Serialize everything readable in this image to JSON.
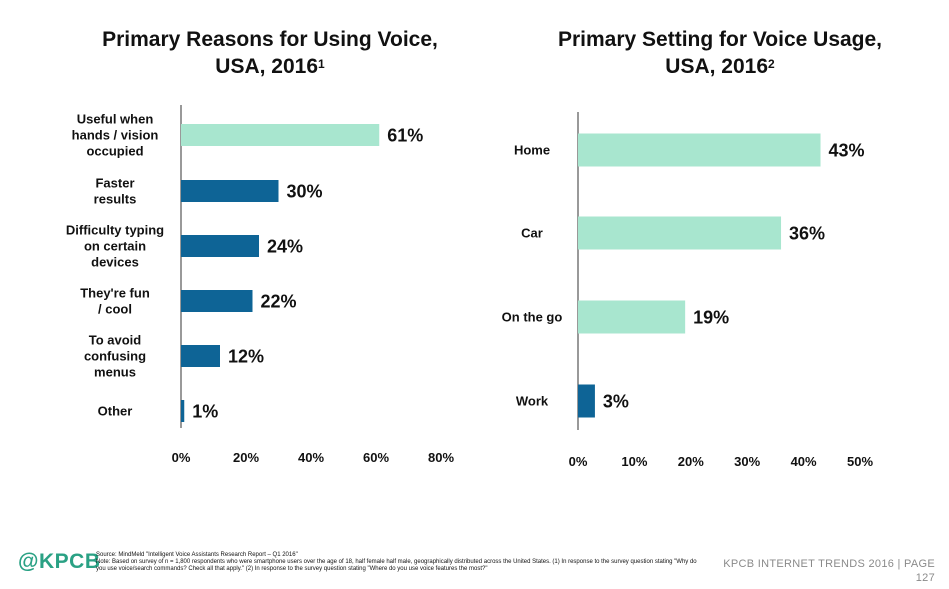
{
  "chart_data": [
    {
      "type": "bar",
      "orientation": "horizontal",
      "title": "Primary Reasons for Using Voice, USA, 2016",
      "title_line1": "Primary Reasons for Using Voice,",
      "title_line2": "USA, 2016",
      "title_footnote": "1",
      "categories": [
        [
          "Useful when",
          "hands / vision",
          "occupied"
        ],
        [
          "Faster",
          "results"
        ],
        [
          "Difficulty typing",
          "on certain",
          "devices"
        ],
        [
          "They're fun",
          "/ cool"
        ],
        [
          "To avoid",
          "confusing",
          "menus"
        ],
        [
          "Other"
        ]
      ],
      "values": [
        61,
        30,
        24,
        22,
        12,
        1
      ],
      "value_labels": [
        "61%",
        "30%",
        "24%",
        "22%",
        "12%",
        "1%"
      ],
      "bar_colors": [
        "#a8e6cf",
        "#0e6496",
        "#0e6496",
        "#0e6496",
        "#0e6496",
        "#0e6496"
      ],
      "xlim": [
        0,
        80
      ],
      "xticks": [
        0,
        20,
        40,
        60,
        80
      ],
      "xtick_labels": [
        "0%",
        "20%",
        "40%",
        "60%",
        "80%"
      ],
      "grid": false
    },
    {
      "type": "bar",
      "orientation": "horizontal",
      "title": "Primary Setting for Voice Usage, USA, 2016",
      "title_line1": "Primary Setting for Voice Usage,",
      "title_line2": "USA, 2016",
      "title_footnote": "2",
      "categories": [
        [
          "Home"
        ],
        [
          "Car"
        ],
        [
          "On the go"
        ],
        [
          "Work"
        ]
      ],
      "values": [
        43,
        36,
        19,
        3
      ],
      "value_labels": [
        "43%",
        "36%",
        "19%",
        "3%"
      ],
      "bar_colors": [
        "#a8e6cf",
        "#a8e6cf",
        "#a8e6cf",
        "#0e6496"
      ],
      "xlim": [
        0,
        50
      ],
      "xticks": [
        0,
        10,
        20,
        30,
        40,
        50
      ],
      "xtick_labels": [
        "0%",
        "10%",
        "20%",
        "30%",
        "40%",
        "50%"
      ],
      "grid": false
    }
  ],
  "footer": {
    "logo": "@KPCB",
    "source_line": "Source: MindMeld \"Intelligent Voice Assistants Research Report – Q1 2016\"",
    "note_line": "Note: Based on survey of n = 1,800 respondents who were smartphone users over the age of 18, half female half male, geographically distributed across the United States. (1) In response to the survey question stating \"Why do you use voice/search commands? Check all that apply.\" (2) In response to the survey question stating \"Where do you use voice features the most?\"",
    "brand_text": "KPCB INTERNET TRENDS 2016  |  PAGE",
    "page_number": "127"
  },
  "colors": {
    "highlight": "#a8e6cf",
    "primary": "#0e6496",
    "axis": "#333333",
    "logo": "#2aa184"
  }
}
